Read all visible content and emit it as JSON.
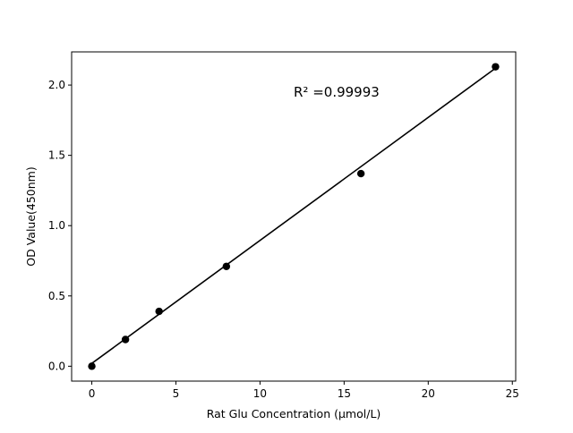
{
  "chart_data": {
    "type": "scatter",
    "title": "",
    "xlabel": "Rat Glu Concentration (μmol/L)",
    "ylabel": "OD Value(450nm)",
    "xlim": [
      -1.2,
      25.2
    ],
    "ylim": [
      -0.106,
      2.236
    ],
    "x_ticks": [
      0,
      5,
      10,
      15,
      20,
      25
    ],
    "y_ticks": [
      0.0,
      0.5,
      1.0,
      1.5,
      2.0
    ],
    "x_tick_labels": [
      "0",
      "5",
      "10",
      "15",
      "20",
      "25"
    ],
    "y_tick_labels": [
      "0.0",
      "0.5",
      "1.0",
      "1.5",
      "2.0"
    ],
    "series": [
      {
        "marker": "circle",
        "color": "#000000",
        "x": [
          0,
          2,
          4,
          8,
          16,
          24
        ],
        "y": [
          0.0,
          0.19,
          0.39,
          0.71,
          1.37,
          2.13
        ]
      }
    ],
    "fit_line": {
      "color": "#000000",
      "x": [
        0,
        24
      ],
      "y": [
        0.02,
        2.12
      ]
    },
    "annotation": {
      "text": "R² =0.99993",
      "x": 12,
      "y": 1.9
    },
    "grid": false,
    "legend": "none"
  }
}
